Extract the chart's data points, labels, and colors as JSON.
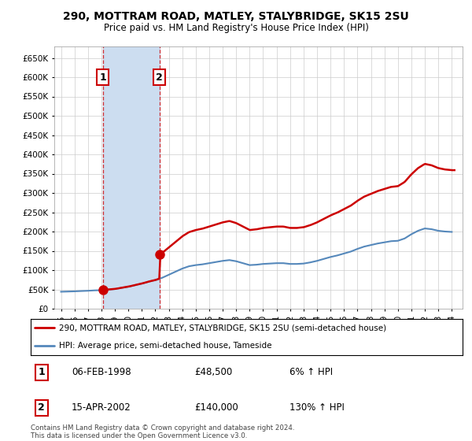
{
  "title": "290, MOTTRAM ROAD, MATLEY, STALYBRIDGE, SK15 2SU",
  "subtitle": "Price paid vs. HM Land Registry's House Price Index (HPI)",
  "sale1_date": "06-FEB-1998",
  "sale1_price": 48500,
  "sale1_year": 1998.1,
  "sale1_hpi_pct": "6% ↑ HPI",
  "sale2_date": "15-APR-2002",
  "sale2_price": 140000,
  "sale2_year": 2002.3,
  "sale2_hpi_pct": "130% ↑ HPI",
  "legend_line1": "290, MOTTRAM ROAD, MATLEY, STALYBRIDGE, SK15 2SU (semi-detached house)",
  "legend_line2": "HPI: Average price, semi-detached house, Tameside",
  "footer": "Contains HM Land Registry data © Crown copyright and database right 2024.\nThis data is licensed under the Open Government Licence v3.0.",
  "red_color": "#cc0000",
  "blue_color": "#5588bb",
  "shade_color": "#ccddf0",
  "background_color": "#ffffff",
  "grid_color": "#cccccc",
  "ylim_max": 680000,
  "xlim_min": 1994.5,
  "xlim_max": 2024.8,
  "years_hpi": [
    1995.0,
    1995.5,
    1996.0,
    1996.5,
    1997.0,
    1997.5,
    1998.0,
    1998.5,
    1999.0,
    1999.5,
    2000.0,
    2000.5,
    2001.0,
    2001.5,
    2002.0,
    2002.5,
    2003.0,
    2003.5,
    2004.0,
    2004.5,
    2005.0,
    2005.5,
    2006.0,
    2006.5,
    2007.0,
    2007.5,
    2008.0,
    2008.5,
    2009.0,
    2009.5,
    2010.0,
    2010.5,
    2011.0,
    2011.5,
    2012.0,
    2012.5,
    2013.0,
    2013.5,
    2014.0,
    2014.5,
    2015.0,
    2015.5,
    2016.0,
    2016.5,
    2017.0,
    2017.5,
    2018.0,
    2018.5,
    2019.0,
    2019.5,
    2020.0,
    2020.5,
    2021.0,
    2021.5,
    2022.0,
    2022.5,
    2023.0,
    2023.5,
    2024.0
  ],
  "hpi_values": [
    44000,
    44500,
    45000,
    45800,
    46500,
    47500,
    48000,
    49500,
    51000,
    54000,
    57000,
    61000,
    65000,
    70000,
    74000,
    80000,
    88000,
    96000,
    104000,
    110000,
    113000,
    115000,
    118000,
    121000,
    124000,
    126000,
    123000,
    118000,
    113000,
    114000,
    116000,
    117000,
    118000,
    118000,
    116000,
    116000,
    117000,
    120000,
    124000,
    129000,
    134000,
    138000,
    143000,
    148000,
    155000,
    161000,
    165000,
    169000,
    172000,
    175000,
    176000,
    182000,
    193000,
    202000,
    208000,
    206000,
    202000,
    200000,
    199000
  ]
}
